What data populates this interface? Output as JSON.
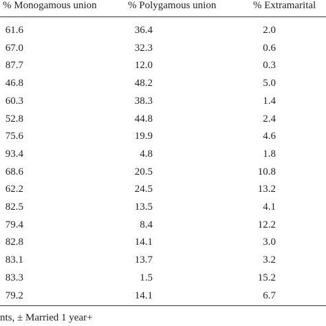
{
  "table": {
    "header": [
      "% Monogamous union",
      "% Polygamous union",
      "% Extramarital"
    ],
    "rows": [
      [
        "61.6",
        "36.4",
        "2.0"
      ],
      [
        "67.0",
        "32.3",
        "0.6"
      ],
      [
        "87.7",
        "12.0",
        "0.3"
      ],
      [
        "46.8",
        "48.2",
        "5.0"
      ],
      [
        "60.3",
        "38.3",
        "1.4"
      ],
      [
        "52.8",
        "44.8",
        "2.4"
      ],
      [
        "75.6",
        "19.9",
        "4.6"
      ],
      [
        "93.4",
        "4.8",
        "1.8"
      ],
      [
        "68.6",
        "20.5",
        "10.8"
      ],
      [
        "62.2",
        "24.5",
        "13.2"
      ],
      [
        "82.5",
        "13.5",
        "4.1"
      ],
      [
        "79.4",
        "8.4",
        "12.2"
      ],
      [
        "82.8",
        "14.1",
        "3.0"
      ],
      [
        "83.1",
        "13.7",
        "3.2"
      ],
      [
        "83.3",
        "1.5",
        "15.2"
      ],
      [
        "79.2",
        "14.1",
        "6.7"
      ]
    ],
    "footnote": "nts, ± Married 1 year+"
  }
}
